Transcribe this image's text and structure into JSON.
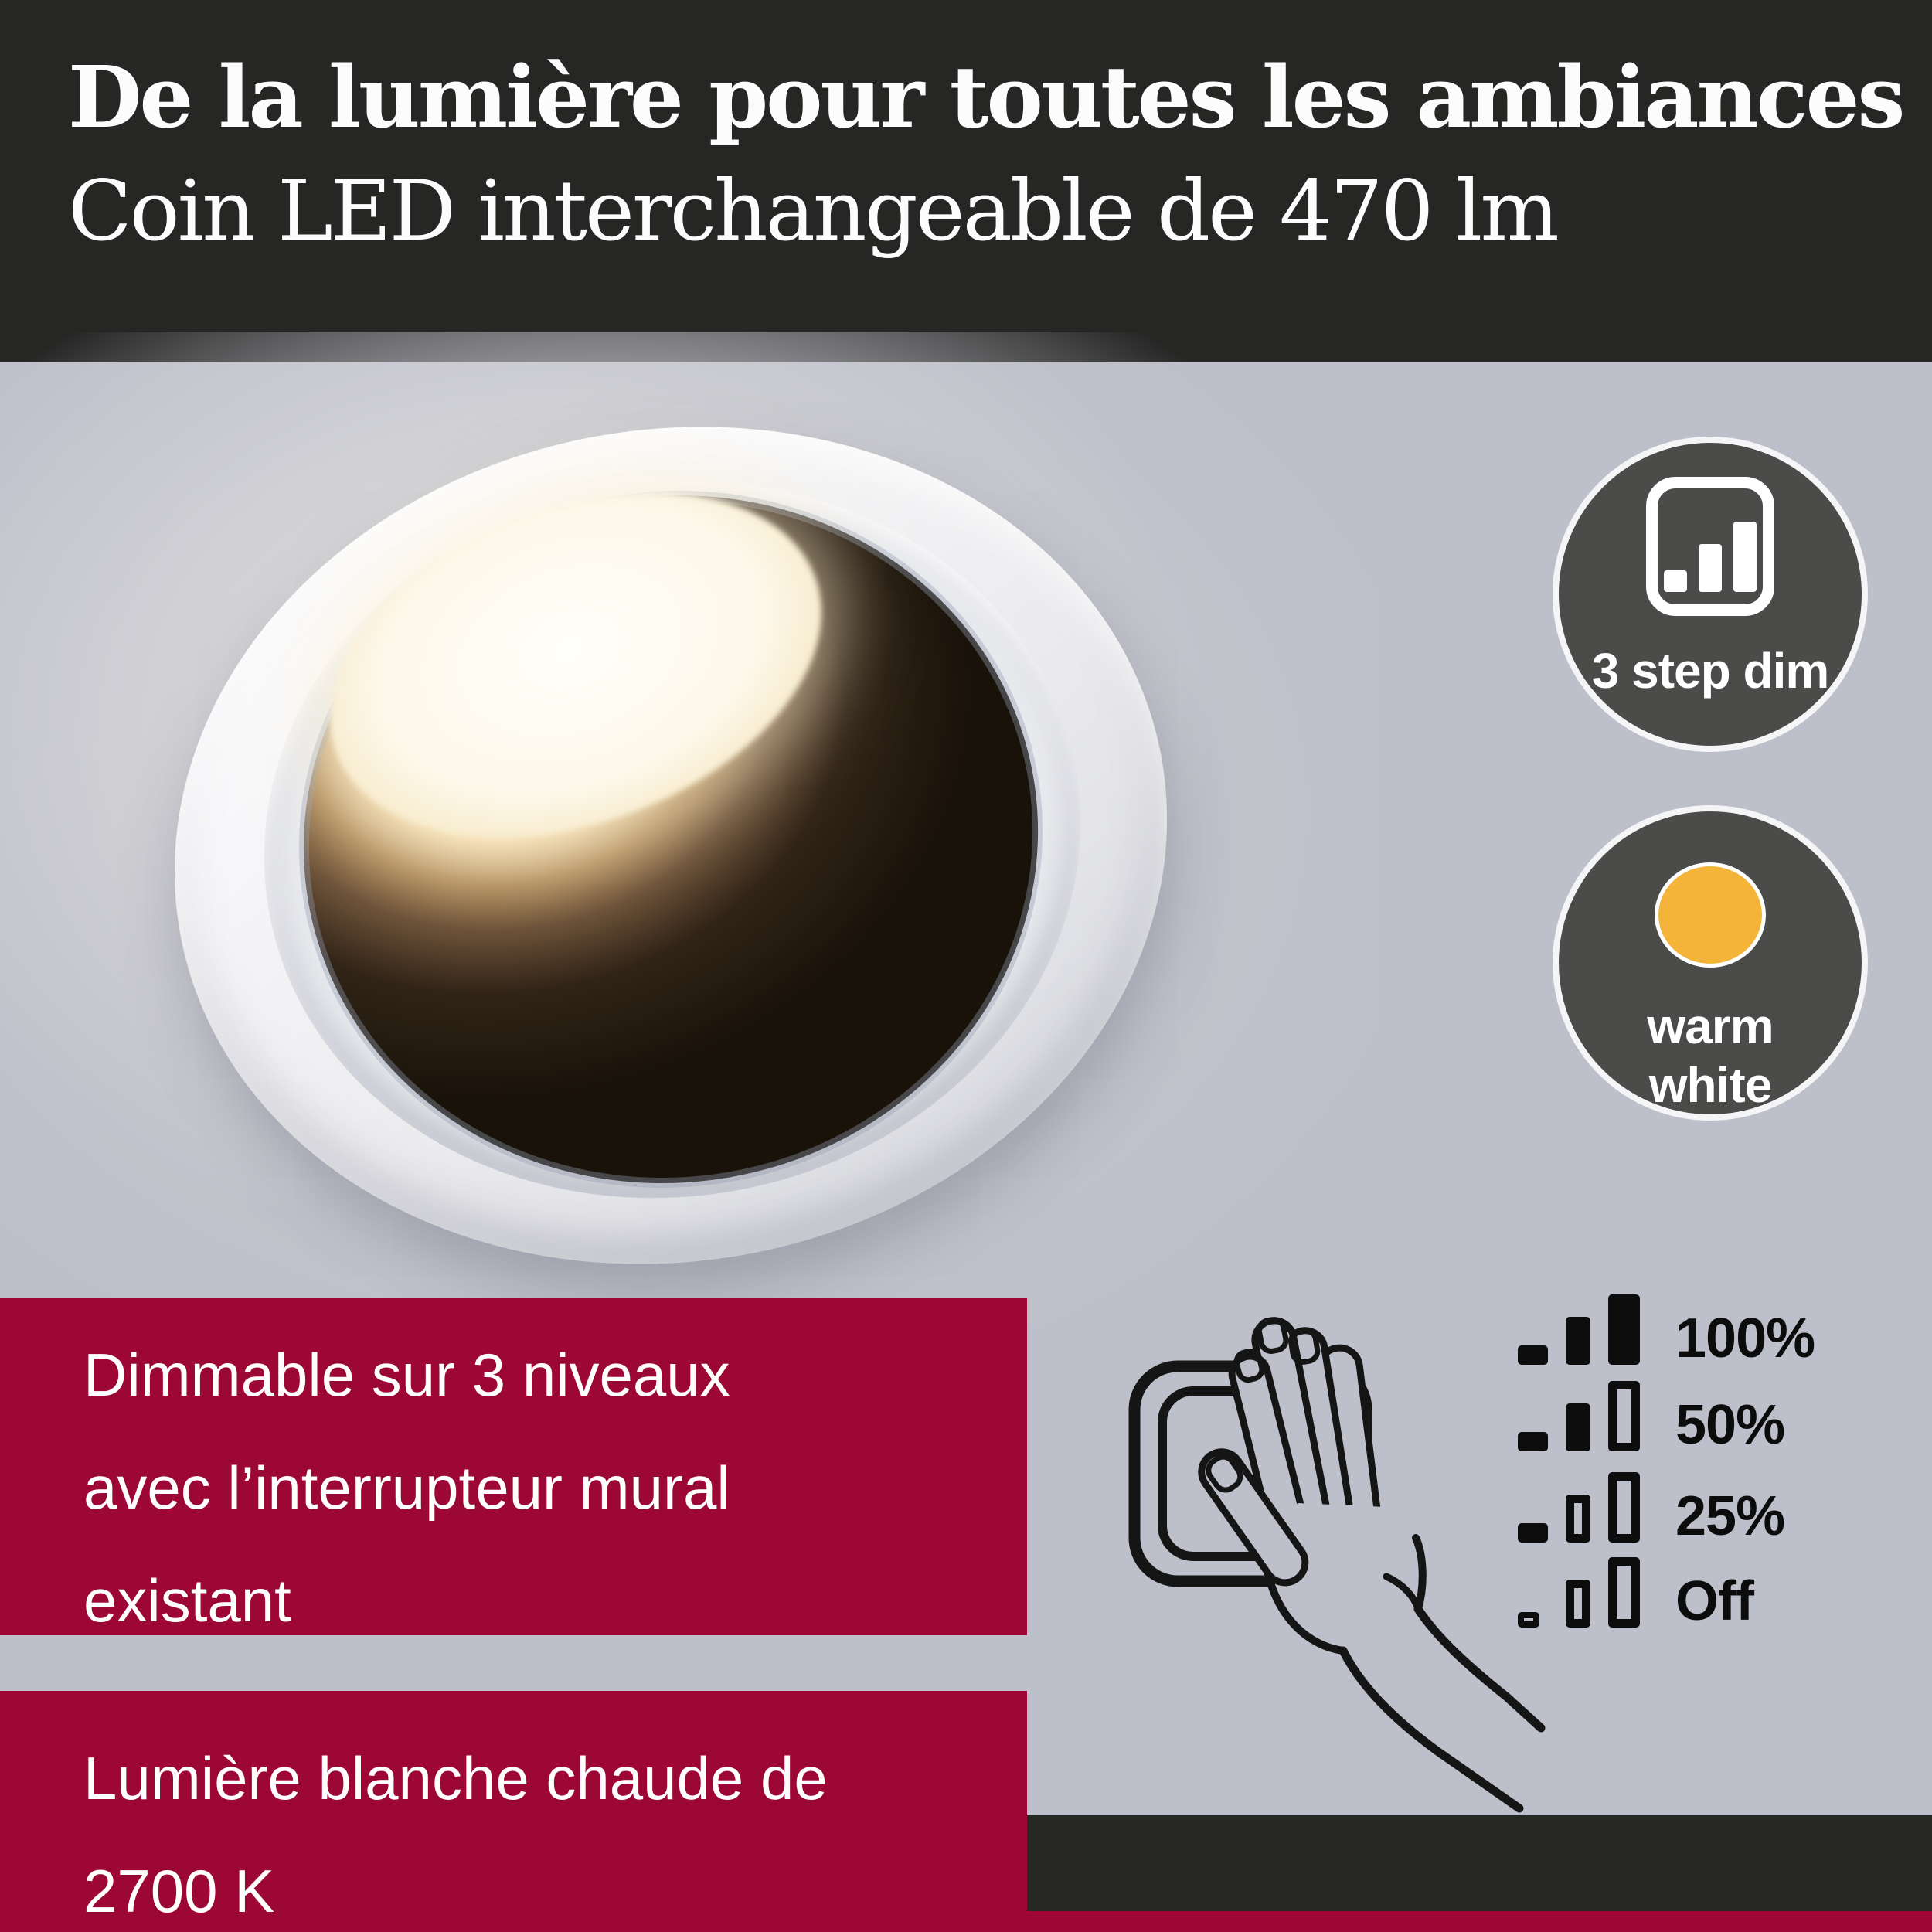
{
  "header": {
    "title": "De la lumière pour toutes les ambiances",
    "subtitle": "Coin LED interchangeable de 470 lm"
  },
  "badges": {
    "step_dim": {
      "label": "3 step dim",
      "icon": "bar-levels-icon"
    },
    "warm_white": {
      "line1": "warm",
      "line2": "white",
      "icon": "warm-dot-icon",
      "dot_color": "#f4b43a"
    }
  },
  "features": [
    {
      "lines": [
        "Dimmable sur 3 niveaux",
        "avec l’interrupteur mural",
        "existant"
      ]
    },
    {
      "lines": [
        "Lumière blanche chaude de",
        "2700 K"
      ]
    }
  ],
  "dim_levels": [
    {
      "label": "100%",
      "bars": [
        {
          "size": "s",
          "style": "filled"
        },
        {
          "size": "m",
          "style": "filled"
        },
        {
          "size": "l",
          "style": "filled"
        }
      ]
    },
    {
      "label": "50%",
      "bars": [
        {
          "size": "s",
          "style": "filled"
        },
        {
          "size": "m",
          "style": "filled"
        },
        {
          "size": "l",
          "style": "outline"
        }
      ]
    },
    {
      "label": "25%",
      "bars": [
        {
          "size": "s",
          "style": "filled"
        },
        {
          "size": "m",
          "style": "outline"
        },
        {
          "size": "l",
          "style": "outline"
        }
      ]
    },
    {
      "label": "Off",
      "bars": [
        {
          "size": "xs",
          "style": "outline"
        },
        {
          "size": "m",
          "style": "outline"
        },
        {
          "size": "l",
          "style": "outline"
        }
      ]
    }
  ],
  "colors": {
    "header_bg": "#262625",
    "page_bg": "#bdbfca",
    "accent_red": "#9d0736",
    "badge_gray": "#4b4b4a",
    "warm_yellow": "#f4b43a",
    "bar_black": "#0d0d0d"
  },
  "illustration": {
    "name": "hand-pressing-wall-switch",
    "product": "recessed LED downlight photo"
  }
}
